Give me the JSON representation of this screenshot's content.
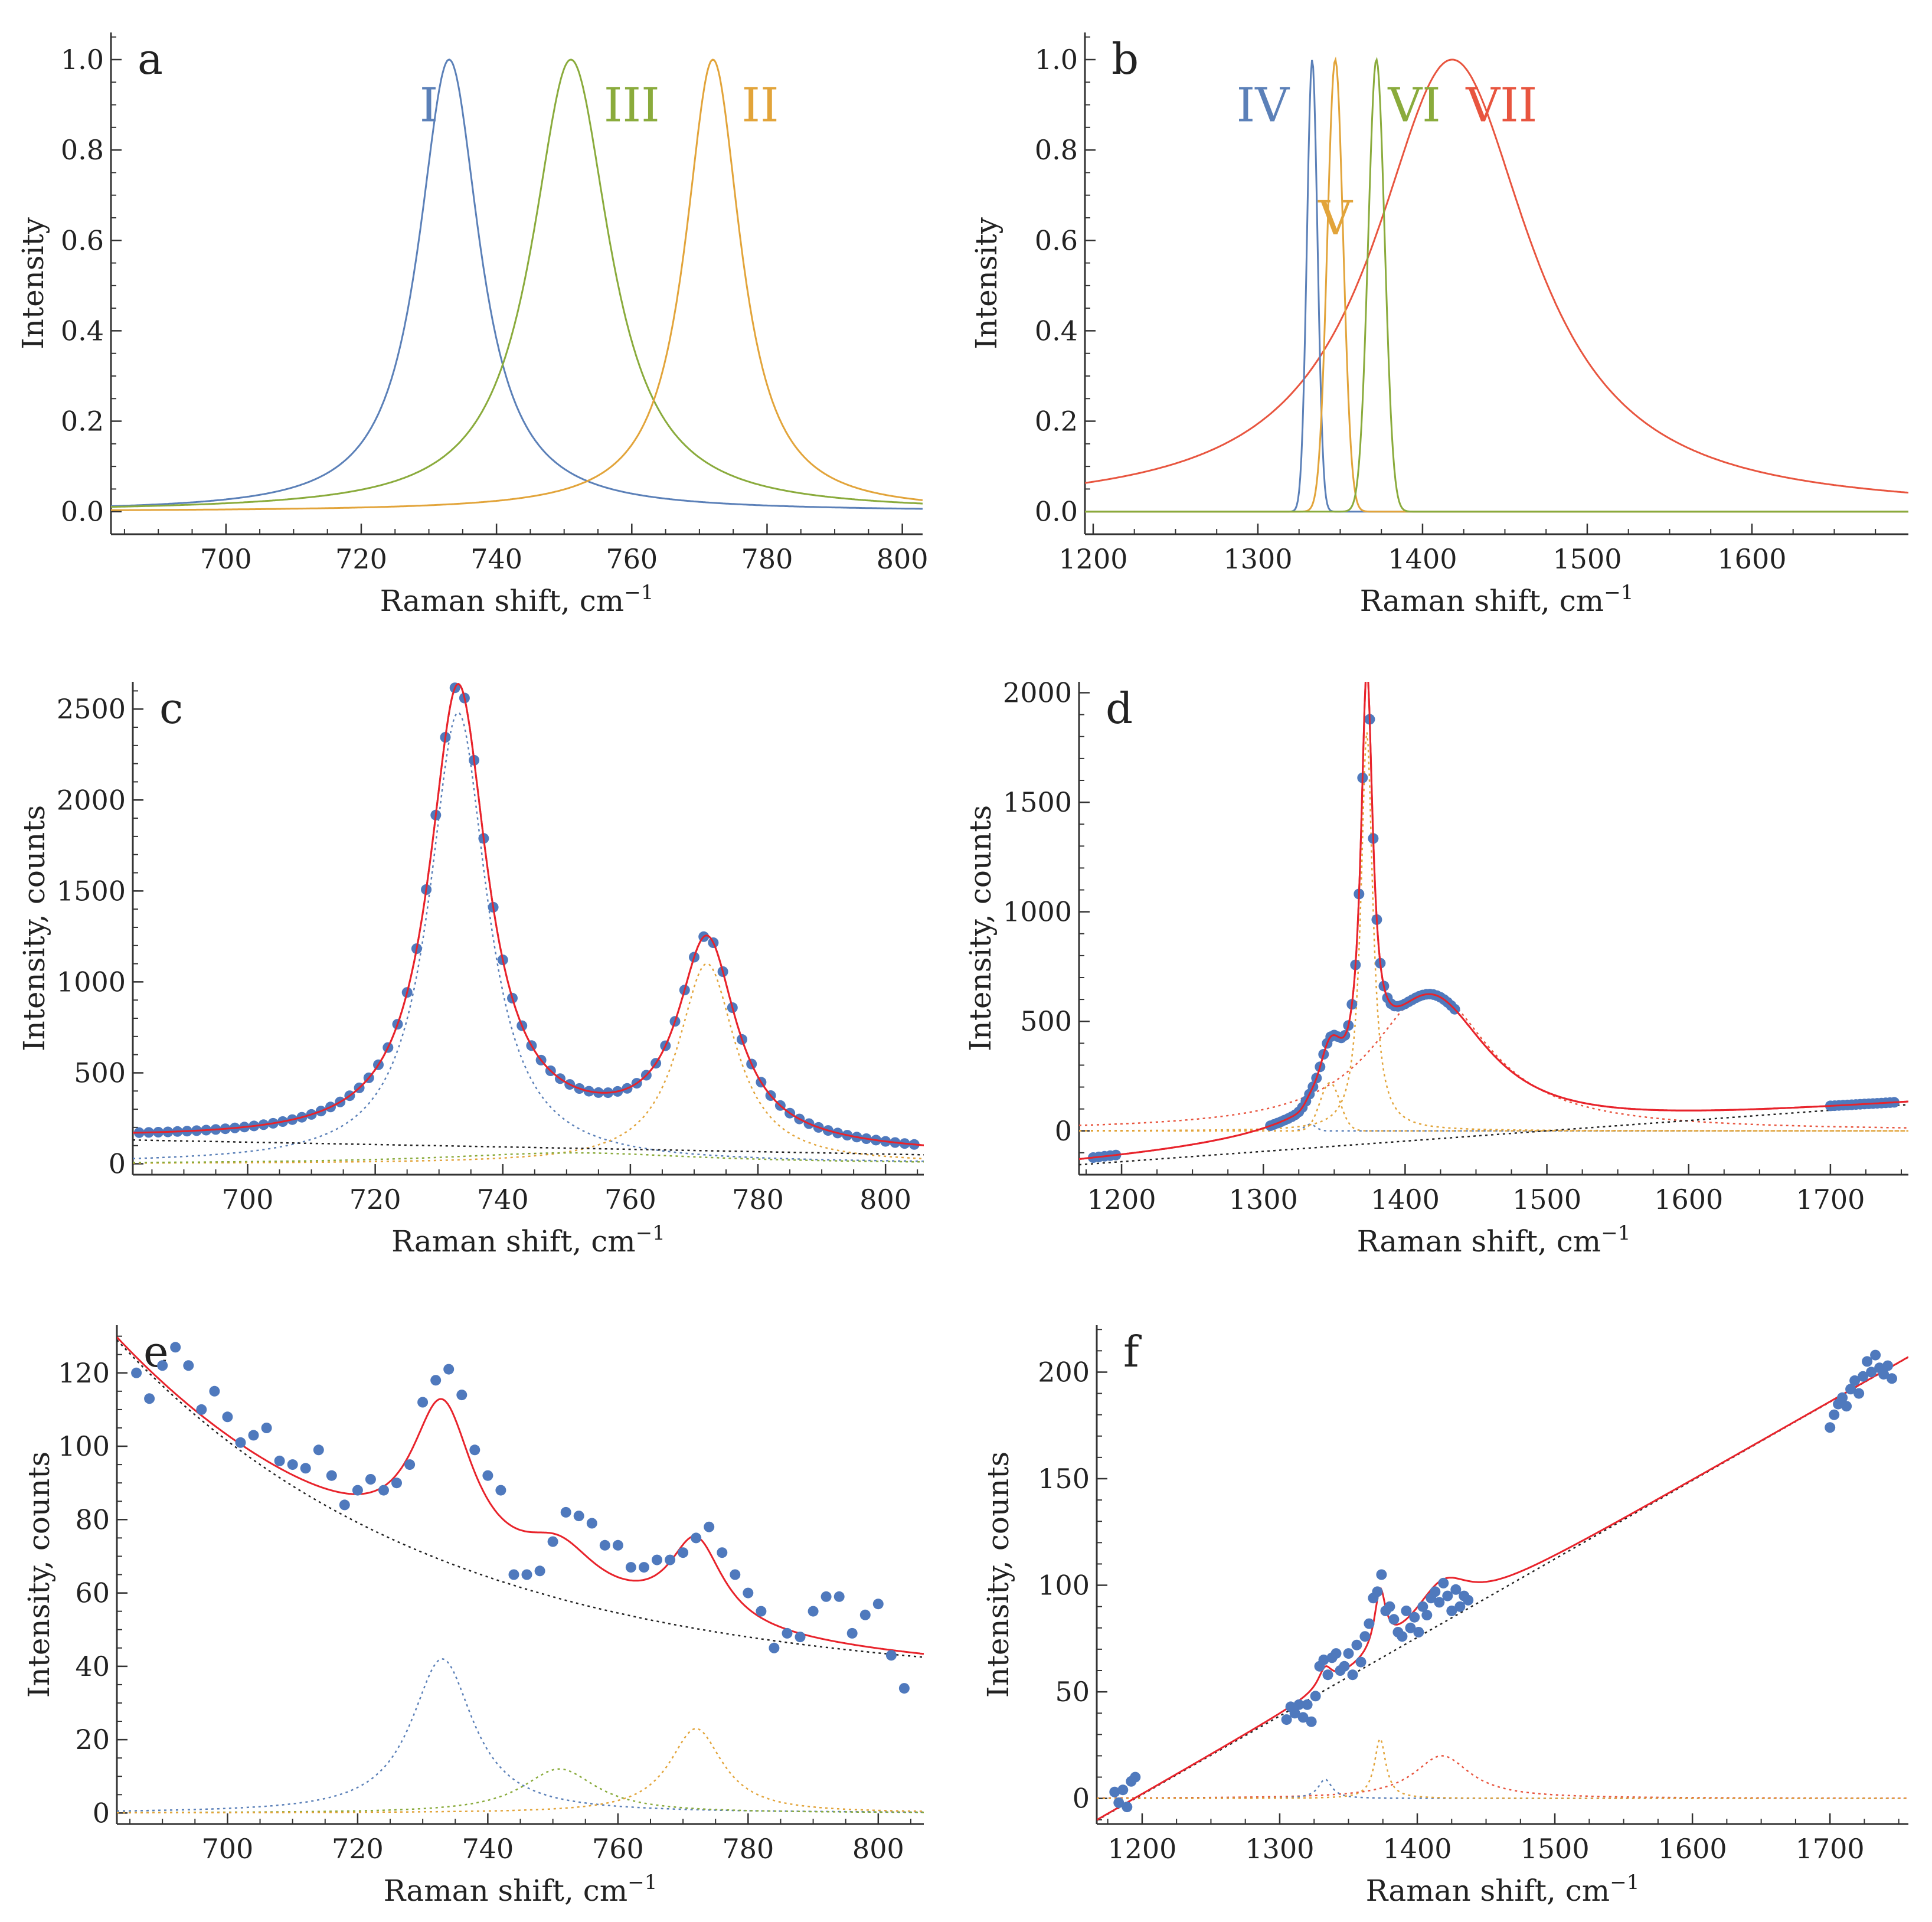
{
  "figure": {
    "background": "#ffffff"
  },
  "colors": {
    "I": "#5b80b8",
    "II": "#e2a43a",
    "III": "#8aab3c",
    "IV": "#5b80b8",
    "V": "#e2a43a",
    "VI": "#8aab3c",
    "VII": "#e8553f",
    "fit": "#e8232b",
    "baseline": "#222222",
    "points": "#4f79bd"
  },
  "chart_data": [
    {
      "id": "a",
      "type": "line",
      "label": "a",
      "xlabel": "Raman shift, cm",
      "xlabel_sup": "−1",
      "ylabel": "Intensity",
      "xlim": [
        683,
        803
      ],
      "ylim": [
        -0.05,
        1.06
      ],
      "xticks": [
        700,
        720,
        740,
        760,
        780,
        800
      ],
      "xtick_labels": [
        "700",
        "720",
        "740",
        "760",
        "780",
        "800"
      ],
      "yticks": [
        0,
        0.2,
        0.4,
        0.6,
        0.8,
        1.0
      ],
      "ytick_labels": [
        "0.0",
        "0.2",
        "0.4",
        "0.6",
        "0.8",
        "1.0"
      ],
      "x_minor": 5,
      "y_minor": 0.05,
      "series": [
        {
          "name": "I",
          "shape": "lorentz",
          "center": 733,
          "hwhm": 5.5,
          "amp": 1.0,
          "color": "#5b80b8",
          "style": "solid"
        },
        {
          "name": "III",
          "shape": "lorentz",
          "center": 751,
          "hwhm": 7.0,
          "amp": 1.0,
          "color": "#8aab3c",
          "style": "solid"
        },
        {
          "name": "II",
          "shape": "lorentz",
          "center": 772,
          "hwhm": 5.0,
          "amp": 1.0,
          "color": "#e2a43a",
          "style": "solid"
        }
      ],
      "annotations": [
        {
          "text": "I",
          "x": 730,
          "y": 0.9,
          "color": "#5b80b8"
        },
        {
          "text": "III",
          "x": 760,
          "y": 0.9,
          "color": "#8aab3c"
        },
        {
          "text": "II",
          "x": 779,
          "y": 0.9,
          "color": "#e2a43a"
        }
      ]
    },
    {
      "id": "b",
      "type": "line",
      "label": "b",
      "xlabel": "Raman shift, cm",
      "xlabel_sup": "−1",
      "ylabel": "Intensity",
      "xlim": [
        1195,
        1695
      ],
      "ylim": [
        -0.05,
        1.06
      ],
      "xticks": [
        1200,
        1300,
        1400,
        1500,
        1600
      ],
      "xtick_labels": [
        "1200",
        "1300",
        "1400",
        "1500",
        "1600"
      ],
      "yticks": [
        0,
        0.2,
        0.4,
        0.6,
        0.8,
        1.0
      ],
      "ytick_labels": [
        "0.0",
        "0.2",
        "0.4",
        "0.6",
        "0.8",
        "1.0"
      ],
      "x_minor": 25,
      "y_minor": 0.05,
      "series": [
        {
          "name": "VII",
          "shape": "lorentz",
          "center": 1418,
          "hwhm": 58,
          "amp": 1.0,
          "color": "#e8553f",
          "style": "solid"
        },
        {
          "name": "IV",
          "shape": "gauss",
          "center": 1333,
          "sigma": 3.2,
          "amp": 1.0,
          "color": "#5b80b8",
          "style": "solid"
        },
        {
          "name": "V",
          "shape": "gauss",
          "center": 1347,
          "sigma": 4.8,
          "amp": 1.0,
          "color": "#e2a43a",
          "style": "solid"
        },
        {
          "name": "VI",
          "shape": "gauss",
          "center": 1372,
          "sigma": 5.0,
          "amp": 1.0,
          "color": "#8aab3c",
          "style": "solid"
        }
      ],
      "annotations": [
        {
          "text": "IV",
          "x": 1303,
          "y": 0.9,
          "color": "#5b80b8"
        },
        {
          "text": "V",
          "x": 1347,
          "y": 0.65,
          "color": "#e2a43a"
        },
        {
          "text": "VI",
          "x": 1395,
          "y": 0.9,
          "color": "#8aab3c"
        },
        {
          "text": "VII",
          "x": 1448,
          "y": 0.9,
          "color": "#e8553f"
        }
      ]
    },
    {
      "id": "c",
      "type": "scatter",
      "label": "c",
      "xlabel": "Raman shift, cm",
      "xlabel_sup": "−1",
      "ylabel": "Intensity, counts",
      "xlim": [
        682,
        806
      ],
      "ylim": [
        -60,
        2650
      ],
      "xticks": [
        700,
        720,
        740,
        760,
        780,
        800
      ],
      "xtick_labels": [
        "700",
        "720",
        "740",
        "760",
        "780",
        "800"
      ],
      "yticks": [
        0,
        500,
        1000,
        1500,
        2000,
        2500
      ],
      "ytick_labels": [
        "0",
        "500",
        "1000",
        "1500",
        "2000",
        "2500"
      ],
      "x_minor": 5,
      "y_minor": 100,
      "points": {
        "x_start": 683,
        "x_end": 805,
        "step": 1.5
      },
      "series": [
        {
          "name": "",
          "shape": "lorentz",
          "center": 733,
          "hwhm": 5.5,
          "amp": 2480,
          "color": "#5b80b8",
          "style": "dotted"
        },
        {
          "name": "",
          "shape": "lorentz",
          "center": 772,
          "hwhm": 5.5,
          "amp": 1100,
          "color": "#e2a43a",
          "style": "dotted"
        },
        {
          "name": "",
          "shape": "lorentz",
          "center": 751,
          "hwhm": 25,
          "amp": 60,
          "color": "#8aab3c",
          "style": "dotted"
        },
        {
          "name": "",
          "shape": "linear",
          "x0": 683,
          "y0": 130,
          "x1": 805,
          "y1": 50,
          "color": "#222222",
          "style": "dotted"
        },
        {
          "name": "",
          "shape": "sum",
          "components": [
            0,
            1,
            2,
            3
          ],
          "color": "#e8232b",
          "style": "solid",
          "points": true
        }
      ]
    },
    {
      "id": "d",
      "type": "scatter",
      "label": "d",
      "xlabel": "Raman shift, cm",
      "xlabel_sup": "−1",
      "ylabel": "Intensity, counts",
      "xlim": [
        1170,
        1755
      ],
      "ylim": [
        -200,
        2050
      ],
      "xticks": [
        1200,
        1300,
        1400,
        1500,
        1600,
        1700
      ],
      "xtick_labels": [
        "1200",
        "1300",
        "1400",
        "1500",
        "1600",
        "1700"
      ],
      "yticks": [
        0,
        500,
        1000,
        1500,
        2000
      ],
      "ytick_labels": [
        "0",
        "500",
        "1000",
        "1500",
        "2000"
      ],
      "x_minor": 25,
      "y_minor": 100,
      "point_ranges": [
        [
          1180,
          1198,
          4
        ],
        [
          1305,
          1437,
          2.5
        ],
        [
          1700,
          1745,
          3
        ]
      ],
      "series": [
        {
          "name": "",
          "shape": "lorentz",
          "center": 1418,
          "hwhm": 50,
          "amp": 640,
          "color": "#e8553f",
          "style": "dotted"
        },
        {
          "name": "",
          "shape": "gauss",
          "center": 1333,
          "sigma": 4,
          "amp": 30,
          "color": "#5b80b8",
          "style": "dotted"
        },
        {
          "name": "",
          "shape": "gauss",
          "center": 1347,
          "sigma": 7,
          "amp": 220,
          "color": "#e2a43a",
          "style": "dotted"
        },
        {
          "name": "",
          "shape": "lorentz",
          "center": 1373,
          "hwhm": 5,
          "amp": 1820,
          "color": "#e2a43a",
          "style": "dotted"
        },
        {
          "name": "",
          "shape": "linear",
          "x0": 1180,
          "y0": -150,
          "x1": 1755,
          "y1": 120,
          "color": "#222222",
          "style": "dotted"
        },
        {
          "name": "",
          "shape": "sum",
          "components": [
            0,
            1,
            2,
            3,
            4
          ],
          "color": "#e8232b",
          "style": "solid",
          "points": true
        }
      ]
    },
    {
      "id": "e",
      "type": "scatter",
      "label": "e",
      "xlabel": "Raman shift, cm",
      "xlabel_sup": "−1",
      "ylabel": "Intensity, counts",
      "xlim": [
        683,
        807
      ],
      "ylim": [
        -3,
        133
      ],
      "xticks": [
        700,
        720,
        740,
        760,
        780,
        800
      ],
      "xtick_labels": [
        "700",
        "720",
        "740",
        "760",
        "780",
        "800"
      ],
      "yticks": [
        0,
        20,
        40,
        60,
        80,
        100,
        120
      ],
      "ytick_labels": [
        "0",
        "20",
        "40",
        "60",
        "80",
        "100",
        "120"
      ],
      "x_minor": 5,
      "y_minor": 5,
      "points_xy": [
        [
          686,
          120
        ],
        [
          688,
          113
        ],
        [
          690,
          122
        ],
        [
          692,
          127
        ],
        [
          694,
          122
        ],
        [
          696,
          110
        ],
        [
          698,
          115
        ],
        [
          700,
          108
        ],
        [
          702,
          101
        ],
        [
          704,
          103
        ],
        [
          706,
          105
        ],
        [
          708,
          96
        ],
        [
          710,
          95
        ],
        [
          712,
          94
        ],
        [
          714,
          99
        ],
        [
          716,
          92
        ],
        [
          718,
          84
        ],
        [
          720,
          88
        ],
        [
          722,
          91
        ],
        [
          724,
          88
        ],
        [
          726,
          90
        ],
        [
          728,
          95
        ],
        [
          730,
          112
        ],
        [
          732,
          118
        ],
        [
          734,
          121
        ],
        [
          736,
          114
        ],
        [
          738,
          99
        ],
        [
          740,
          92
        ],
        [
          742,
          88
        ],
        [
          744,
          65
        ],
        [
          746,
          65
        ],
        [
          748,
          66
        ],
        [
          750,
          74
        ],
        [
          752,
          82
        ],
        [
          754,
          81
        ],
        [
          756,
          79
        ],
        [
          758,
          73
        ],
        [
          760,
          73
        ],
        [
          762,
          67
        ],
        [
          764,
          67
        ],
        [
          766,
          69
        ],
        [
          768,
          69
        ],
        [
          770,
          71
        ],
        [
          772,
          75
        ],
        [
          774,
          78
        ],
        [
          776,
          71
        ],
        [
          778,
          65
        ],
        [
          780,
          60
        ],
        [
          782,
          55
        ],
        [
          784,
          45
        ],
        [
          786,
          49
        ],
        [
          788,
          48
        ],
        [
          790,
          55
        ],
        [
          792,
          59
        ],
        [
          794,
          59
        ],
        [
          796,
          49
        ],
        [
          798,
          54
        ],
        [
          800,
          57
        ],
        [
          802,
          43
        ],
        [
          804,
          34
        ]
      ],
      "series": [
        {
          "name": "",
          "shape": "lorentz",
          "center": 733,
          "hwhm": 5.8,
          "amp": 42,
          "color": "#5b80b8",
          "style": "dotted"
        },
        {
          "name": "",
          "shape": "lorentz",
          "center": 751,
          "hwhm": 7,
          "amp": 12,
          "color": "#8aab3c",
          "style": "dotted"
        },
        {
          "name": "",
          "shape": "lorentz",
          "center": 772,
          "hwhm": 5,
          "amp": 23,
          "color": "#e2a43a",
          "style": "dotted"
        },
        {
          "name": "",
          "shape": "exp",
          "y_inf": 35,
          "a": 94,
          "x0": 683,
          "tau": 49,
          "color": "#222222",
          "style": "dotted"
        },
        {
          "name": "",
          "shape": "sum",
          "components": [
            0,
            1,
            2,
            3
          ],
          "color": "#e8232b",
          "style": "solid"
        }
      ]
    },
    {
      "id": "f",
      "type": "scatter",
      "label": "f",
      "xlabel": "Raman shift, cm",
      "xlabel_sup": "−1",
      "ylabel": "Intensity, counts",
      "xlim": [
        1167,
        1757
      ],
      "ylim": [
        -12,
        222
      ],
      "xticks": [
        1200,
        1300,
        1400,
        1500,
        1600,
        1700
      ],
      "xtick_labels": [
        "1200",
        "1300",
        "1400",
        "1500",
        "1600",
        "1700"
      ],
      "yticks": [
        0,
        50,
        100,
        150,
        200
      ],
      "ytick_labels": [
        "0",
        "50",
        "100",
        "150",
        "200"
      ],
      "x_minor": 25,
      "y_minor": 10,
      "points_xy": [
        [
          1180,
          3
        ],
        [
          1183,
          -2
        ],
        [
          1186,
          4
        ],
        [
          1189,
          -4
        ],
        [
          1192,
          8
        ],
        [
          1195,
          10
        ],
        [
          1305,
          37
        ],
        [
          1308,
          43
        ],
        [
          1311,
          40
        ],
        [
          1314,
          44
        ],
        [
          1317,
          38
        ],
        [
          1320,
          44
        ],
        [
          1323,
          36
        ],
        [
          1326,
          48
        ],
        [
          1329,
          62
        ],
        [
          1332,
          65
        ],
        [
          1335,
          58
        ],
        [
          1338,
          66
        ],
        [
          1341,
          68
        ],
        [
          1344,
          60
        ],
        [
          1347,
          62
        ],
        [
          1350,
          68
        ],
        [
          1353,
          58
        ],
        [
          1356,
          72
        ],
        [
          1359,
          64
        ],
        [
          1362,
          76
        ],
        [
          1365,
          82
        ],
        [
          1368,
          94
        ],
        [
          1371,
          97
        ],
        [
          1374,
          105
        ],
        [
          1377,
          88
        ],
        [
          1380,
          90
        ],
        [
          1383,
          84
        ],
        [
          1386,
          78
        ],
        [
          1389,
          76
        ],
        [
          1392,
          88
        ],
        [
          1395,
          80
        ],
        [
          1398,
          85
        ],
        [
          1401,
          78
        ],
        [
          1404,
          90
        ],
        [
          1407,
          86
        ],
        [
          1410,
          94
        ],
        [
          1413,
          97
        ],
        [
          1416,
          92
        ],
        [
          1419,
          101
        ],
        [
          1422,
          95
        ],
        [
          1425,
          88
        ],
        [
          1428,
          98
        ],
        [
          1431,
          90
        ],
        [
          1434,
          95
        ],
        [
          1437,
          93
        ],
        [
          1700,
          174
        ],
        [
          1703,
          180
        ],
        [
          1706,
          185
        ],
        [
          1709,
          188
        ],
        [
          1712,
          184
        ],
        [
          1715,
          192
        ],
        [
          1718,
          196
        ],
        [
          1721,
          190
        ],
        [
          1724,
          198
        ],
        [
          1727,
          205
        ],
        [
          1730,
          200
        ],
        [
          1733,
          208
        ],
        [
          1736,
          202
        ],
        [
          1739,
          199
        ],
        [
          1742,
          203
        ],
        [
          1745,
          197
        ]
      ],
      "series": [
        {
          "name": "",
          "shape": "lorentz",
          "center": 1418,
          "hwhm": 25,
          "amp": 20,
          "color": "#e8553f",
          "style": "dotted"
        },
        {
          "name": "",
          "shape": "lorentz",
          "center": 1333,
          "hwhm": 6,
          "amp": 9,
          "color": "#5b80b8",
          "style": "dotted"
        },
        {
          "name": "",
          "shape": "lorentz",
          "center": 1373,
          "hwhm": 5,
          "amp": 28,
          "color": "#e2a43a",
          "style": "dotted"
        },
        {
          "name": "",
          "shape": "linear",
          "x0": 1195,
          "y0": 0,
          "x1": 1757,
          "y1": 207,
          "color": "#222222",
          "style": "dotted"
        },
        {
          "name": "",
          "shape": "sum",
          "components": [
            0,
            1,
            2,
            3
          ],
          "color": "#e8232b",
          "style": "solid"
        }
      ]
    }
  ]
}
